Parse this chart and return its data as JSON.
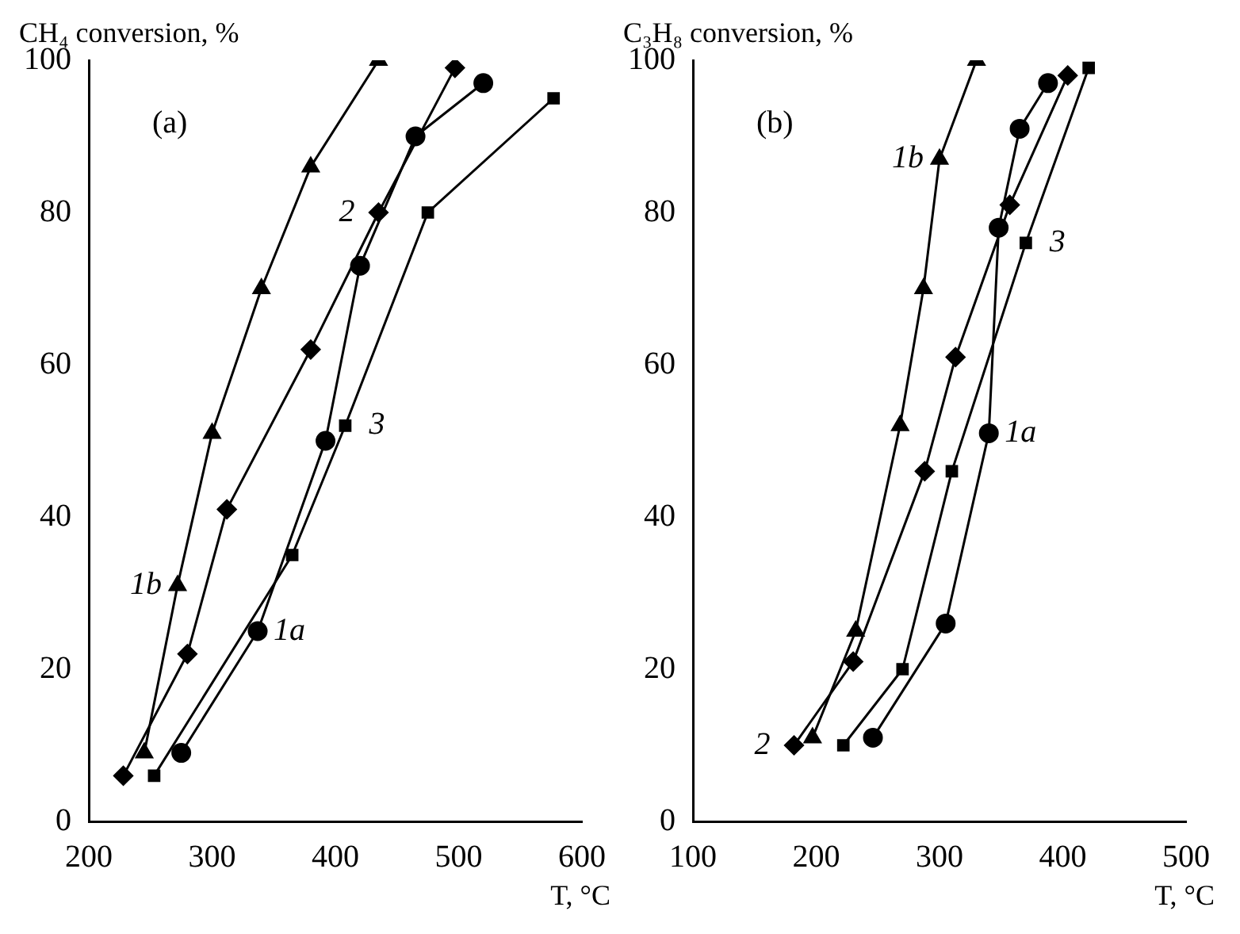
{
  "chart_data": [
    {
      "type": "line",
      "ylabel": "CH₄ conversion, %",
      "xlabel": "T, °C",
      "xlim": [
        200,
        600
      ],
      "xticks": [
        200,
        300,
        400,
        500,
        600
      ],
      "ylim": [
        0,
        100
      ],
      "yticks": [
        0,
        20,
        40,
        60,
        80,
        100
      ],
      "grid": false,
      "legend": false,
      "line_style": "solid",
      "series": [
        {
          "name": "1b",
          "color": "#000000",
          "marker": "triangle",
          "x": [
            245,
            272,
            300,
            340,
            380,
            435
          ],
          "values": [
            9,
            31,
            51,
            70,
            86,
            100
          ]
        },
        {
          "name": "2",
          "color": "#000000",
          "marker": "diamond",
          "x": [
            228,
            280,
            312,
            380,
            435,
            497
          ],
          "values": [
            6,
            22,
            41,
            62,
            80,
            99
          ]
        },
        {
          "name": "1a",
          "color": "#000000",
          "marker": "circle",
          "x": [
            275,
            337,
            392,
            420,
            465,
            520
          ],
          "values": [
            9,
            25,
            50,
            73,
            90,
            97
          ]
        },
        {
          "name": "3",
          "color": "#000000",
          "marker": "square",
          "x": [
            253,
            365,
            408,
            475,
            577
          ],
          "values": [
            6,
            35,
            52,
            80,
            95
          ]
        }
      ],
      "annotations": [
        "(a)"
      ]
    },
    {
      "type": "line",
      "ylabel": "C₃H₈ conversion, %",
      "xlabel": "T, °C",
      "xlim": [
        100,
        500
      ],
      "xticks": [
        100,
        200,
        300,
        400,
        500
      ],
      "ylim": [
        0,
        100
      ],
      "yticks": [
        0,
        20,
        40,
        60,
        80,
        100
      ],
      "grid": false,
      "legend": false,
      "line_style": "solid",
      "series": [
        {
          "name": "1b",
          "color": "#000000",
          "marker": "triangle",
          "x": [
            197,
            232,
            268,
            287,
            300,
            330
          ],
          "values": [
            11,
            25,
            52,
            70,
            87,
            100
          ]
        },
        {
          "name": "2",
          "color": "#000000",
          "marker": "diamond",
          "x": [
            182,
            230,
            288,
            313,
            357,
            404
          ],
          "values": [
            10,
            21,
            46,
            61,
            81,
            98
          ]
        },
        {
          "name": "1a",
          "color": "#000000",
          "marker": "circle",
          "x": [
            246,
            305,
            340,
            348,
            365,
            388
          ],
          "values": [
            11,
            26,
            51,
            78,
            91,
            97
          ]
        },
        {
          "name": "3",
          "color": "#000000",
          "marker": "square",
          "x": [
            222,
            270,
            310,
            370,
            421
          ],
          "values": [
            10,
            20,
            46,
            76,
            99
          ]
        }
      ],
      "annotations": [
        "(b)"
      ]
    }
  ]
}
